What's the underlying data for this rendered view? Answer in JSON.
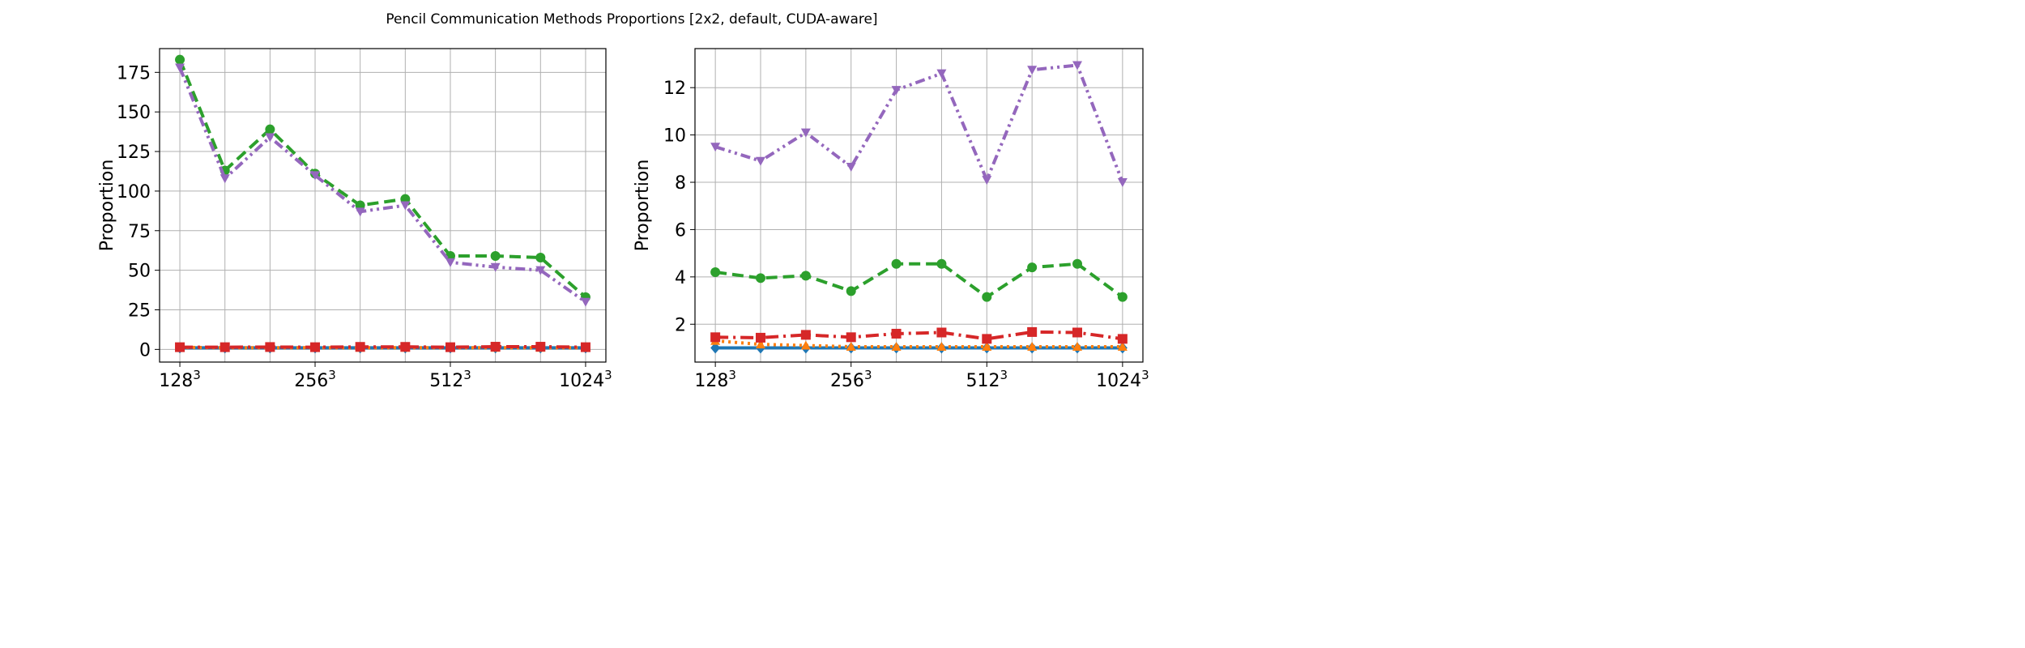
{
  "figure": {
    "title": "Pencil Communication Methods Proportions [2x2, default, CUDA-aware]"
  },
  "colors": {
    "blue": "#1f77b4",
    "orange": "#ff7f0e",
    "green": "#2ca02c",
    "red": "#d62728",
    "purple": "#9467bd",
    "grid": "#b0b0b0"
  },
  "chart_data": [
    {
      "type": "line",
      "xlabel": "",
      "ylabel": "Proportion",
      "x": [
        0,
        1,
        2,
        3,
        4,
        5,
        6,
        7,
        8,
        9
      ],
      "x_ticks": [
        0,
        3,
        6,
        9
      ],
      "x_tick_labels": [
        {
          "base": "128",
          "exp": "3"
        },
        {
          "base": "256",
          "exp": "3"
        },
        {
          "base": "512",
          "exp": "3"
        },
        {
          "base": "1024",
          "exp": "3"
        }
      ],
      "xlim": [
        -0.45,
        9.45
      ],
      "ylim": [
        -8,
        190
      ],
      "y_ticks": [
        0,
        25,
        50,
        75,
        100,
        125,
        150,
        175
      ],
      "grid": true,
      "series": [
        {
          "color": "blue",
          "style": "solid",
          "marker": "diamond",
          "values": [
            1,
            1,
            1,
            1,
            1,
            1,
            1,
            1,
            1,
            1
          ]
        },
        {
          "color": "orange",
          "style": "dotted",
          "marker": "triangle-up",
          "values": [
            1.3,
            1.1,
            1.1,
            1.05,
            1.05,
            1.05,
            1.05,
            1.05,
            1.05,
            1.05
          ]
        },
        {
          "color": "red",
          "style": "dashdot",
          "marker": "square",
          "values": [
            1.4,
            1.4,
            1.5,
            1.4,
            1.6,
            1.6,
            1.4,
            1.7,
            1.7,
            1.4
          ]
        },
        {
          "color": "green",
          "style": "dashed",
          "marker": "circle",
          "values": [
            183,
            113,
            139,
            111,
            91,
            95,
            59,
            59,
            58,
            33
          ]
        },
        {
          "color": "purple",
          "style": "dashdotdot",
          "marker": "triangle-down",
          "values": [
            178,
            108,
            134,
            110,
            87,
            91,
            55,
            52,
            50,
            30
          ]
        }
      ]
    },
    {
      "type": "line",
      "xlabel": "",
      "ylabel": "Proportion",
      "x": [
        0,
        1,
        2,
        3,
        4,
        5,
        6,
        7,
        8,
        9
      ],
      "x_ticks": [
        0,
        3,
        6,
        9
      ],
      "x_tick_labels": [
        {
          "base": "128",
          "exp": "3"
        },
        {
          "base": "256",
          "exp": "3"
        },
        {
          "base": "512",
          "exp": "3"
        },
        {
          "base": "1024",
          "exp": "3"
        }
      ],
      "xlim": [
        -0.45,
        9.45
      ],
      "ylim": [
        0.4,
        13.65
      ],
      "y_ticks": [
        2,
        4,
        6,
        8,
        10,
        12
      ],
      "grid": true,
      "series": [
        {
          "color": "blue",
          "style": "solid",
          "marker": "diamond",
          "values": [
            1,
            1,
            1,
            1,
            1,
            1,
            1,
            1,
            1,
            1
          ]
        },
        {
          "color": "orange",
          "style": "dotted",
          "marker": "triangle-up",
          "values": [
            1.3,
            1.15,
            1.1,
            1.05,
            1.05,
            1.05,
            1.05,
            1.05,
            1.05,
            1.05
          ]
        },
        {
          "color": "red",
          "style": "dashdot",
          "marker": "square",
          "values": [
            1.45,
            1.43,
            1.55,
            1.45,
            1.6,
            1.65,
            1.38,
            1.67,
            1.65,
            1.38
          ]
        },
        {
          "color": "green",
          "style": "dashed",
          "marker": "circle",
          "values": [
            4.2,
            3.95,
            4.05,
            3.4,
            4.55,
            4.55,
            3.15,
            4.4,
            4.55,
            3.15
          ]
        },
        {
          "color": "purple",
          "style": "dashdotdot",
          "marker": "triangle-down",
          "values": [
            9.5,
            8.9,
            10.1,
            8.65,
            11.9,
            12.6,
            8.1,
            12.75,
            12.95,
            8.0
          ]
        }
      ]
    }
  ]
}
